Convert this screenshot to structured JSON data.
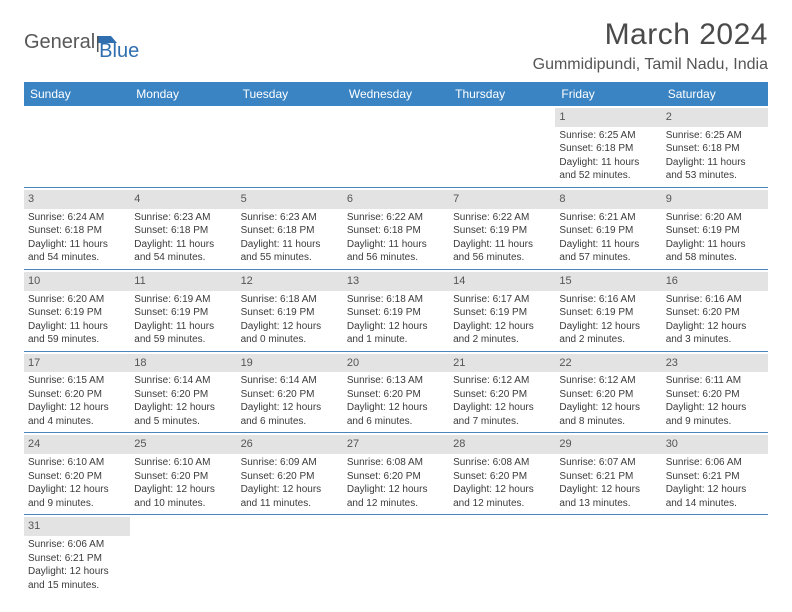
{
  "brand": {
    "part1": "General",
    "part2": "Blue"
  },
  "title": "March 2024",
  "location": "Gummidipundi, Tamil Nadu, India",
  "colors": {
    "header_bg": "#3a84c4",
    "header_text": "#ffffff",
    "day_bg": "#e3e3e3",
    "cell_border": "#4a86b8",
    "body_text": "#3b3b3b",
    "title_text": "#4a4a4a",
    "brand_gray": "#585858",
    "brand_blue": "#2f6fb0"
  },
  "day_headers": [
    "Sunday",
    "Monday",
    "Tuesday",
    "Wednesday",
    "Thursday",
    "Friday",
    "Saturday"
  ],
  "weeks": [
    [
      null,
      null,
      null,
      null,
      null,
      {
        "n": "1",
        "sr": "6:25 AM",
        "ss": "6:18 PM",
        "dl": "11 hours and 52 minutes."
      },
      {
        "n": "2",
        "sr": "6:25 AM",
        "ss": "6:18 PM",
        "dl": "11 hours and 53 minutes."
      }
    ],
    [
      {
        "n": "3",
        "sr": "6:24 AM",
        "ss": "6:18 PM",
        "dl": "11 hours and 54 minutes."
      },
      {
        "n": "4",
        "sr": "6:23 AM",
        "ss": "6:18 PM",
        "dl": "11 hours and 54 minutes."
      },
      {
        "n": "5",
        "sr": "6:23 AM",
        "ss": "6:18 PM",
        "dl": "11 hours and 55 minutes."
      },
      {
        "n": "6",
        "sr": "6:22 AM",
        "ss": "6:18 PM",
        "dl": "11 hours and 56 minutes."
      },
      {
        "n": "7",
        "sr": "6:22 AM",
        "ss": "6:19 PM",
        "dl": "11 hours and 56 minutes."
      },
      {
        "n": "8",
        "sr": "6:21 AM",
        "ss": "6:19 PM",
        "dl": "11 hours and 57 minutes."
      },
      {
        "n": "9",
        "sr": "6:20 AM",
        "ss": "6:19 PM",
        "dl": "11 hours and 58 minutes."
      }
    ],
    [
      {
        "n": "10",
        "sr": "6:20 AM",
        "ss": "6:19 PM",
        "dl": "11 hours and 59 minutes."
      },
      {
        "n": "11",
        "sr": "6:19 AM",
        "ss": "6:19 PM",
        "dl": "11 hours and 59 minutes."
      },
      {
        "n": "12",
        "sr": "6:18 AM",
        "ss": "6:19 PM",
        "dl": "12 hours and 0 minutes."
      },
      {
        "n": "13",
        "sr": "6:18 AM",
        "ss": "6:19 PM",
        "dl": "12 hours and 1 minute."
      },
      {
        "n": "14",
        "sr": "6:17 AM",
        "ss": "6:19 PM",
        "dl": "12 hours and 2 minutes."
      },
      {
        "n": "15",
        "sr": "6:16 AM",
        "ss": "6:19 PM",
        "dl": "12 hours and 2 minutes."
      },
      {
        "n": "16",
        "sr": "6:16 AM",
        "ss": "6:20 PM",
        "dl": "12 hours and 3 minutes."
      }
    ],
    [
      {
        "n": "17",
        "sr": "6:15 AM",
        "ss": "6:20 PM",
        "dl": "12 hours and 4 minutes."
      },
      {
        "n": "18",
        "sr": "6:14 AM",
        "ss": "6:20 PM",
        "dl": "12 hours and 5 minutes."
      },
      {
        "n": "19",
        "sr": "6:14 AM",
        "ss": "6:20 PM",
        "dl": "12 hours and 6 minutes."
      },
      {
        "n": "20",
        "sr": "6:13 AM",
        "ss": "6:20 PM",
        "dl": "12 hours and 6 minutes."
      },
      {
        "n": "21",
        "sr": "6:12 AM",
        "ss": "6:20 PM",
        "dl": "12 hours and 7 minutes."
      },
      {
        "n": "22",
        "sr": "6:12 AM",
        "ss": "6:20 PM",
        "dl": "12 hours and 8 minutes."
      },
      {
        "n": "23",
        "sr": "6:11 AM",
        "ss": "6:20 PM",
        "dl": "12 hours and 9 minutes."
      }
    ],
    [
      {
        "n": "24",
        "sr": "6:10 AM",
        "ss": "6:20 PM",
        "dl": "12 hours and 9 minutes."
      },
      {
        "n": "25",
        "sr": "6:10 AM",
        "ss": "6:20 PM",
        "dl": "12 hours and 10 minutes."
      },
      {
        "n": "26",
        "sr": "6:09 AM",
        "ss": "6:20 PM",
        "dl": "12 hours and 11 minutes."
      },
      {
        "n": "27",
        "sr": "6:08 AM",
        "ss": "6:20 PM",
        "dl": "12 hours and 12 minutes."
      },
      {
        "n": "28",
        "sr": "6:08 AM",
        "ss": "6:20 PM",
        "dl": "12 hours and 12 minutes."
      },
      {
        "n": "29",
        "sr": "6:07 AM",
        "ss": "6:21 PM",
        "dl": "12 hours and 13 minutes."
      },
      {
        "n": "30",
        "sr": "6:06 AM",
        "ss": "6:21 PM",
        "dl": "12 hours and 14 minutes."
      }
    ],
    [
      {
        "n": "31",
        "sr": "6:06 AM",
        "ss": "6:21 PM",
        "dl": "12 hours and 15 minutes."
      },
      null,
      null,
      null,
      null,
      null,
      null
    ]
  ],
  "labels": {
    "sunrise": "Sunrise:",
    "sunset": "Sunset:",
    "daylight": "Daylight:"
  }
}
